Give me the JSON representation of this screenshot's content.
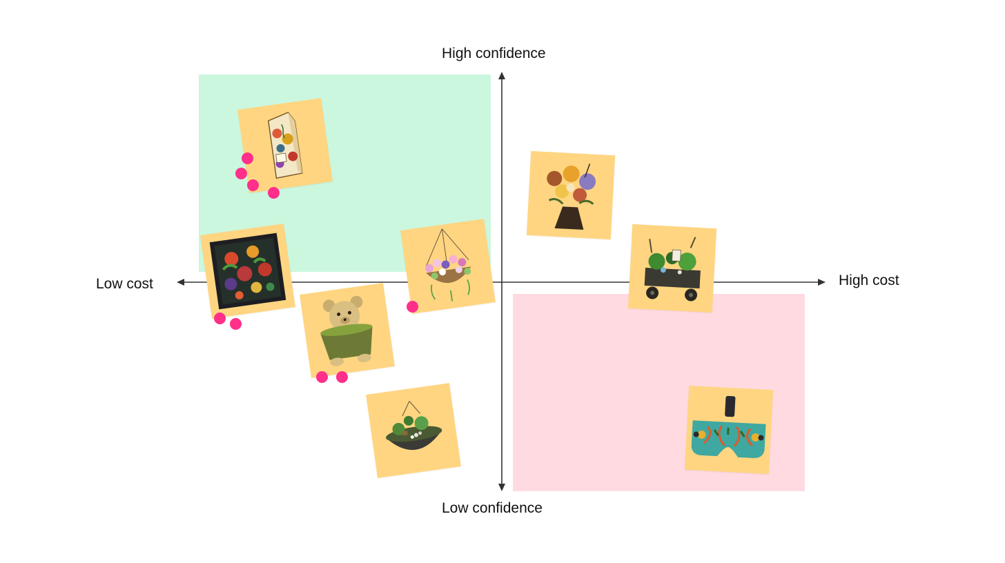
{
  "axes": {
    "top_label": "High confidence",
    "bottom_label": "Low confidence",
    "left_label": "Low cost",
    "right_label": "High cost"
  },
  "colors": {
    "green_zone": "#cbf7df",
    "pink_zone": "#ffdbe1",
    "sticky": "#ffd581",
    "vote": "#ff2f8a",
    "axis": "#333333"
  },
  "stickies": [
    {
      "id": "seed-packet",
      "icon": "seed-packet-icon",
      "votes": 4
    },
    {
      "id": "fruit-painting",
      "icon": "fruit-painting-icon",
      "votes": 2
    },
    {
      "id": "hanging-basket",
      "icon": "hanging-basket-icon",
      "votes": 1
    },
    {
      "id": "bear-planter",
      "icon": "bear-planter-icon",
      "votes": 2
    },
    {
      "id": "dish-garden",
      "icon": "dish-garden-icon",
      "votes": 0
    },
    {
      "id": "flower-bouquet",
      "icon": "flower-bouquet-icon",
      "votes": 0
    },
    {
      "id": "wagon-garden",
      "icon": "wagon-garden-icon",
      "votes": 0
    },
    {
      "id": "vr-headset",
      "icon": "vr-headset-icon",
      "votes": 0
    }
  ]
}
